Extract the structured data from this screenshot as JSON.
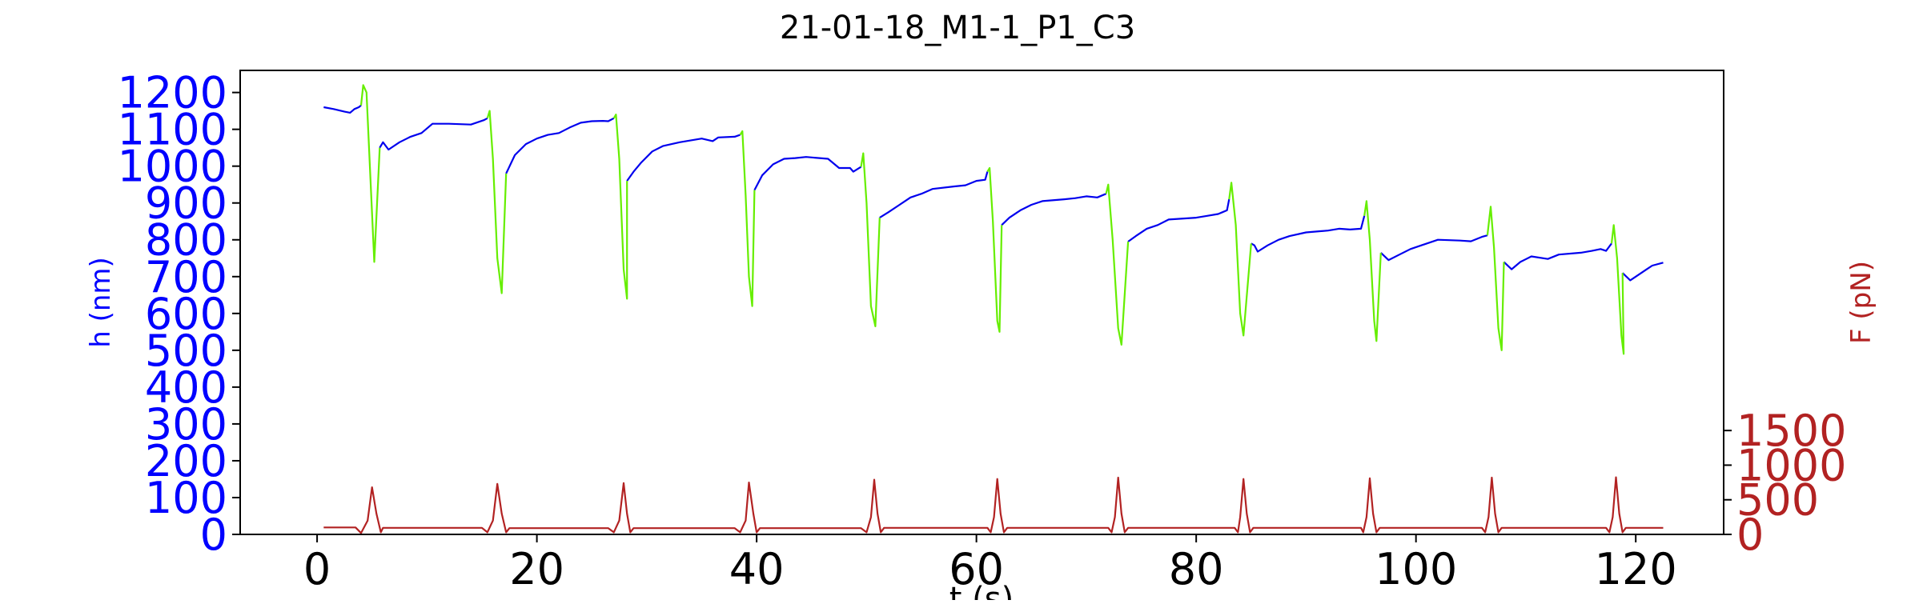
{
  "chart_data": {
    "type": "line",
    "title": "21-01-18_M1-1_P1_C3",
    "xlabel": "t (s)",
    "ylabel_left": "h (nm)",
    "ylabel_right": "F (pN)",
    "xlim": [
      -7,
      128
    ],
    "ylim_left": [
      0,
      1260
    ],
    "ylim_right": [
      0,
      6700
    ],
    "xticks": [
      "0",
      "20",
      "40",
      "60",
      "80",
      "100",
      "120"
    ],
    "yticks_left": [
      "0",
      "100",
      "200",
      "300",
      "400",
      "500",
      "600",
      "700",
      "800",
      "900",
      "1000",
      "1100",
      "1200"
    ],
    "yticks_right": [
      "0",
      "500",
      "1000",
      "1500"
    ],
    "colors": {
      "height_relax": "#0000ee",
      "height_compress": "#66ee00",
      "force": "#b22222",
      "left_axis": "#0000ff",
      "right_axis": "#b22222"
    },
    "series": [
      {
        "axis": "left",
        "color_key": "height_relax",
        "segments": [
          [
            [
              0.6,
              1160
            ],
            [
              1.5,
              1155
            ],
            [
              2.5,
              1148
            ],
            [
              3.0,
              1145
            ],
            [
              3.4,
              1155
            ],
            [
              3.8,
              1160
            ],
            [
              4.0,
              1165
            ]
          ],
          [
            [
              5.7,
              1050
            ],
            [
              6.0,
              1065
            ],
            [
              6.5,
              1045
            ],
            [
              7.5,
              1065
            ],
            [
              8.5,
              1080
            ],
            [
              9.5,
              1090
            ],
            [
              10.5,
              1115
            ],
            [
              12,
              1115
            ],
            [
              14,
              1113
            ],
            [
              15.2,
              1125
            ],
            [
              15.5,
              1130
            ]
          ],
          [
            [
              17.2,
              980
            ],
            [
              18,
              1030
            ],
            [
              19,
              1060
            ],
            [
              20,
              1075
            ],
            [
              21,
              1085
            ],
            [
              22,
              1090
            ],
            [
              23,
              1105
            ],
            [
              24,
              1118
            ],
            [
              25,
              1122
            ],
            [
              26,
              1123
            ],
            [
              26.5,
              1122
            ],
            [
              27,
              1130
            ]
          ],
          [
            [
              28.2,
              960
            ],
            [
              28.8,
              985
            ],
            [
              29.5,
              1010
            ],
            [
              30.5,
              1040
            ],
            [
              31.5,
              1055
            ],
            [
              33,
              1065
            ],
            [
              35,
              1075
            ],
            [
              36,
              1068
            ],
            [
              36.5,
              1078
            ],
            [
              38,
              1080
            ],
            [
              38.5,
              1085
            ]
          ],
          [
            [
              39.8,
              935
            ],
            [
              40.5,
              975
            ],
            [
              41.5,
              1005
            ],
            [
              42.5,
              1020
            ],
            [
              43.5,
              1022
            ],
            [
              44.5,
              1025
            ],
            [
              46.5,
              1020
            ],
            [
              47.5,
              995
            ],
            [
              48.5,
              995
            ],
            [
              48.8,
              985
            ],
            [
              49.5,
              998
            ]
          ],
          [
            [
              51.2,
              860
            ],
            [
              52,
              875
            ],
            [
              53,
              895
            ],
            [
              54,
              915
            ],
            [
              55,
              925
            ],
            [
              56,
              938
            ],
            [
              58,
              945
            ],
            [
              59,
              948
            ],
            [
              60,
              960
            ],
            [
              60.8,
              963
            ],
            [
              61,
              985
            ]
          ],
          [
            [
              62.3,
              840
            ],
            [
              63,
              860
            ],
            [
              64,
              880
            ],
            [
              65,
              895
            ],
            [
              66,
              905
            ],
            [
              68,
              910
            ],
            [
              69,
              913
            ],
            [
              70,
              918
            ],
            [
              71,
              915
            ],
            [
              71.8,
              925
            ]
          ],
          [
            [
              73.8,
              795
            ],
            [
              74.5,
              810
            ],
            [
              75.5,
              830
            ],
            [
              76.5,
              840
            ],
            [
              77.5,
              855
            ],
            [
              80,
              860
            ],
            [
              81,
              865
            ],
            [
              82,
              870
            ],
            [
              82.8,
              880
            ],
            [
              83,
              910
            ]
          ],
          [
            [
              85,
              790
            ],
            [
              85.3,
              785
            ],
            [
              85.6,
              768
            ],
            [
              86.5,
              785
            ],
            [
              87.5,
              800
            ],
            [
              88.5,
              810
            ],
            [
              90,
              820
            ],
            [
              92,
              825
            ],
            [
              93,
              830
            ],
            [
              94,
              828
            ],
            [
              95,
              830
            ],
            [
              95.3,
              865
            ]
          ],
          [
            [
              96.8,
              765
            ],
            [
              97.5,
              745
            ],
            [
              98.5,
              760
            ],
            [
              99.5,
              775
            ],
            [
              101,
              790
            ],
            [
              102,
              800
            ],
            [
              104,
              798
            ],
            [
              105,
              796
            ],
            [
              106,
              808
            ],
            [
              106.5,
              812
            ]
          ],
          [
            [
              108,
              740
            ],
            [
              108.7,
              720
            ],
            [
              109.5,
              740
            ],
            [
              110.5,
              755
            ],
            [
              112,
              748
            ],
            [
              113,
              760
            ],
            [
              115,
              765
            ],
            [
              116,
              770
            ],
            [
              116.8,
              775
            ],
            [
              117.3,
              770
            ],
            [
              117.8,
              790
            ]
          ],
          [
            [
              118.8,
              710
            ],
            [
              119.5,
              690
            ],
            [
              120,
              700
            ],
            [
              121,
              720
            ],
            [
              121.5,
              730
            ],
            [
              122.5,
              738
            ]
          ]
        ]
      },
      {
        "axis": "left",
        "color_key": "height_compress",
        "segments": [
          [
            [
              4.0,
              1165
            ],
            [
              4.2,
              1220
            ],
            [
              4.5,
              1200
            ],
            [
              4.8,
              1000
            ],
            [
              5.2,
              740
            ],
            [
              5.7,
              1050
            ]
          ],
          [
            [
              15.5,
              1130
            ],
            [
              15.7,
              1150
            ],
            [
              16.0,
              1020
            ],
            [
              16.4,
              750
            ],
            [
              16.8,
              655
            ],
            [
              17.2,
              980
            ]
          ],
          [
            [
              27,
              1130
            ],
            [
              27.2,
              1140
            ],
            [
              27.5,
              1020
            ],
            [
              27.9,
              720
            ],
            [
              28.2,
              640
            ],
            [
              28.2,
              960
            ]
          ],
          [
            [
              38.5,
              1085
            ],
            [
              38.7,
              1095
            ],
            [
              39.0,
              920
            ],
            [
              39.3,
              700
            ],
            [
              39.6,
              620
            ],
            [
              39.8,
              935
            ]
          ],
          [
            [
              49.5,
              998
            ],
            [
              49.7,
              1035
            ],
            [
              50,
              900
            ],
            [
              50.4,
              620
            ],
            [
              50.8,
              565
            ],
            [
              51.2,
              860
            ]
          ],
          [
            [
              61,
              985
            ],
            [
              61.2,
              995
            ],
            [
              61.5,
              850
            ],
            [
              61.9,
              580
            ],
            [
              62.1,
              550
            ],
            [
              62.3,
              840
            ]
          ],
          [
            [
              71.8,
              925
            ],
            [
              72,
              950
            ],
            [
              72.4,
              800
            ],
            [
              72.9,
              560
            ],
            [
              73.2,
              515
            ],
            [
              73.8,
              795
            ]
          ],
          [
            [
              83,
              910
            ],
            [
              83.2,
              955
            ],
            [
              83.6,
              840
            ],
            [
              84,
              600
            ],
            [
              84.3,
              540
            ],
            [
              85,
              790
            ]
          ],
          [
            [
              95.3,
              865
            ],
            [
              95.5,
              905
            ],
            [
              95.8,
              800
            ],
            [
              96.2,
              580
            ],
            [
              96.4,
              525
            ],
            [
              96.8,
              765
            ]
          ],
          [
            [
              106.5,
              812
            ],
            [
              106.8,
              890
            ],
            [
              107.1,
              780
            ],
            [
              107.5,
              560
            ],
            [
              107.8,
              500
            ],
            [
              108,
              740
            ]
          ],
          [
            [
              117.8,
              790
            ],
            [
              118,
              840
            ],
            [
              118.3,
              750
            ],
            [
              118.7,
              540
            ],
            [
              118.9,
              490
            ],
            [
              118.8,
              710
            ]
          ]
        ]
      },
      {
        "axis": "right",
        "color_key": "force",
        "segments": [
          [
            [
              0.6,
              100
            ],
            [
              3.5,
              100
            ],
            [
              4.0,
              20
            ],
            [
              4.6,
              200
            ],
            [
              5.0,
              680
            ],
            [
              5.4,
              300
            ],
            [
              5.8,
              30
            ],
            [
              6.0,
              95
            ],
            [
              15,
              95
            ],
            [
              15.5,
              30
            ],
            [
              16,
              200
            ],
            [
              16.4,
              730
            ],
            [
              16.8,
              300
            ],
            [
              17.2,
              30
            ],
            [
              17.5,
              90
            ],
            [
              26.5,
              90
            ],
            [
              27,
              30
            ],
            [
              27.5,
              200
            ],
            [
              27.9,
              740
            ],
            [
              28.2,
              300
            ],
            [
              28.5,
              30
            ],
            [
              28.8,
              90
            ],
            [
              38,
              90
            ],
            [
              38.5,
              30
            ],
            [
              39,
              200
            ],
            [
              39.3,
              750
            ],
            [
              39.7,
              300
            ],
            [
              40,
              30
            ],
            [
              40.3,
              90
            ],
            [
              49.5,
              90
            ],
            [
              50,
              30
            ],
            [
              50.4,
              250
            ],
            [
              50.7,
              790
            ],
            [
              51,
              300
            ],
            [
              51.3,
              30
            ],
            [
              51.6,
              95
            ],
            [
              61,
              95
            ],
            [
              61.3,
              30
            ],
            [
              61.6,
              250
            ],
            [
              61.9,
              800
            ],
            [
              62.2,
              300
            ],
            [
              62.5,
              30
            ],
            [
              62.8,
              95
            ],
            [
              72,
              95
            ],
            [
              72.3,
              30
            ],
            [
              72.6,
              250
            ],
            [
              72.9,
              820
            ],
            [
              73.2,
              300
            ],
            [
              73.5,
              30
            ],
            [
              73.8,
              95
            ],
            [
              83.5,
              95
            ],
            [
              83.8,
              30
            ],
            [
              84,
              250
            ],
            [
              84.3,
              800
            ],
            [
              84.6,
              300
            ],
            [
              84.9,
              30
            ],
            [
              85.2,
              95
            ],
            [
              95,
              95
            ],
            [
              95.2,
              30
            ],
            [
              95.5,
              250
            ],
            [
              95.8,
              810
            ],
            [
              96.1,
              300
            ],
            [
              96.4,
              30
            ],
            [
              96.7,
              95
            ],
            [
              106,
              95
            ],
            [
              106.3,
              30
            ],
            [
              106.6,
              250
            ],
            [
              106.9,
              820
            ],
            [
              107.2,
              300
            ],
            [
              107.5,
              30
            ],
            [
              107.8,
              95
            ],
            [
              117.3,
              95
            ],
            [
              117.6,
              30
            ],
            [
              117.9,
              250
            ],
            [
              118.2,
              825
            ],
            [
              118.5,
              300
            ],
            [
              118.8,
              30
            ],
            [
              119.1,
              95
            ],
            [
              122.5,
              95
            ]
          ]
        ]
      }
    ]
  }
}
